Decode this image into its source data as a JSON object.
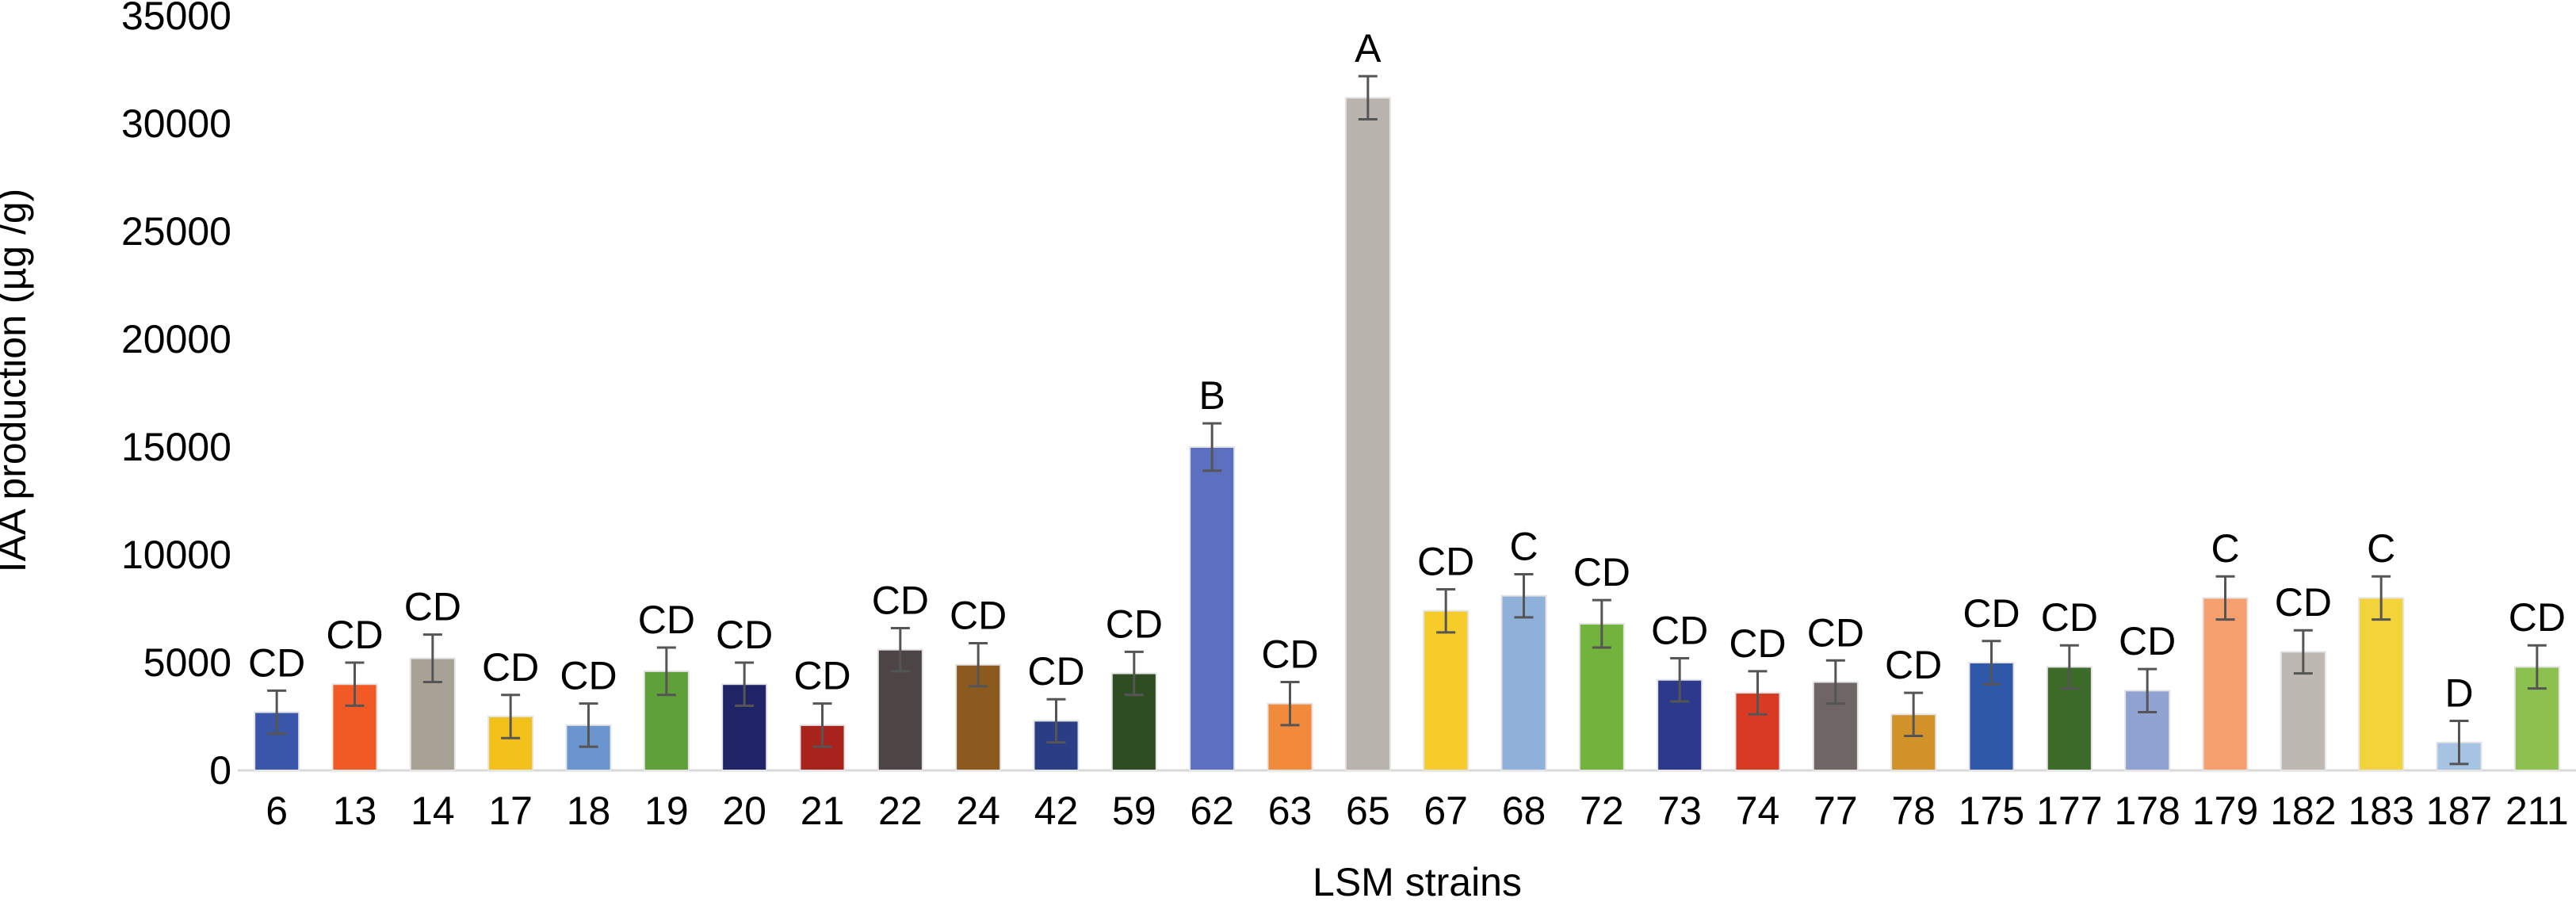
{
  "chart_data": {
    "type": "bar",
    "title": "",
    "xlabel": "LSM strains",
    "ylabel": "IAA production (µg /g)",
    "ylim": [
      0,
      35000
    ],
    "yticks": [
      0,
      5000,
      10000,
      15000,
      20000,
      25000,
      30000,
      35000
    ],
    "grid": false,
    "legend": "none",
    "categories": [
      "6",
      "13",
      "14",
      "17",
      "18",
      "19",
      "20",
      "21",
      "22",
      "24",
      "42",
      "59",
      "62",
      "63",
      "65",
      "67",
      "68",
      "72",
      "73",
      "74",
      "77",
      "78",
      "175",
      "177",
      "178",
      "179",
      "182",
      "183",
      "187",
      "211"
    ],
    "values": [
      2700,
      4000,
      5200,
      2500,
      2100,
      4600,
      4000,
      2100,
      5600,
      4900,
      2300,
      4500,
      15000,
      3100,
      31200,
      7400,
      8100,
      6800,
      4200,
      3600,
      4100,
      2600,
      5000,
      4800,
      3700,
      8000,
      5500,
      8000,
      1300,
      4800
    ],
    "errors": [
      1000,
      1000,
      1100,
      1000,
      1000,
      1100,
      1000,
      1000,
      1000,
      1000,
      1000,
      1000,
      1100,
      1000,
      1000,
      1000,
      1000,
      1100,
      1000,
      1000,
      1000,
      1000,
      1000,
      1000,
      1000,
      1000,
      1000,
      1000,
      1000,
      1000
    ],
    "significance_letters": [
      "CD",
      "CD",
      "CD",
      "CD",
      "CD",
      "CD",
      "CD",
      "CD",
      "CD",
      "CD",
      "CD",
      "CD",
      "B",
      "CD",
      "A",
      "CD",
      "C",
      "CD",
      "CD",
      "CD",
      "CD",
      "CD",
      "CD",
      "CD",
      "CD",
      "C",
      "CD",
      "C",
      "D",
      "CD"
    ],
    "colors": [
      "#3a56a8",
      "#f15a24",
      "#a8a196",
      "#f2c21b",
      "#6a95cf",
      "#5fa03a",
      "#1f2466",
      "#a9231d",
      "#4d4445",
      "#8c5a1e",
      "#2b3e85",
      "#2e4d22",
      "#5d6fbf",
      "#f28a3c",
      "#b8b3ad",
      "#f5cc2a",
      "#8fb0d9",
      "#72b33e",
      "#2d3a8c",
      "#d83a23",
      "#6e6564",
      "#d2922a",
      "#2f58a8",
      "#3d6b2a",
      "#8fa2d2",
      "#f5a06e",
      "#bdb9b0",
      "#f2d33a",
      "#a7c3e3",
      "#8cc14f"
    ]
  }
}
